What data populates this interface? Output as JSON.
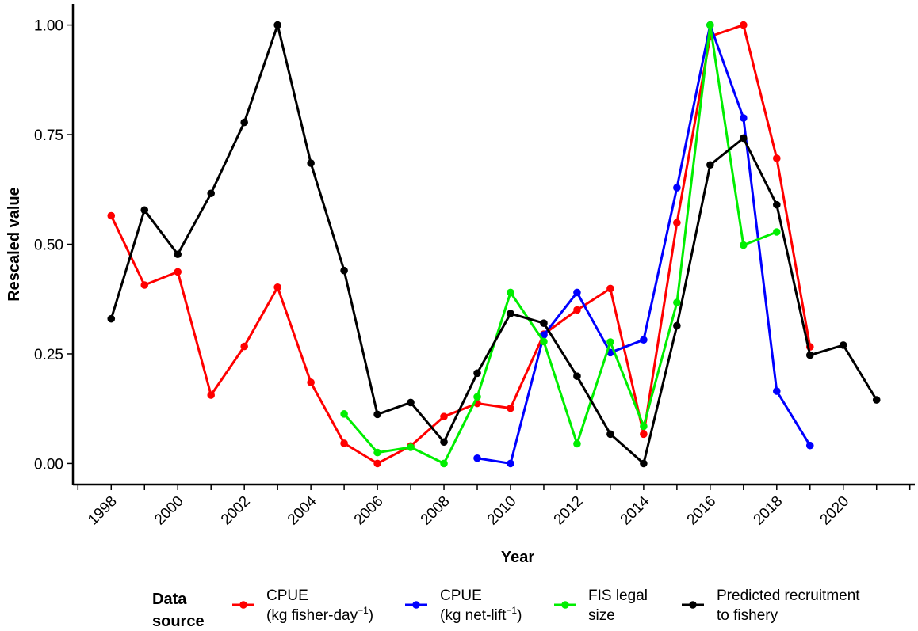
{
  "chart_data": {
    "type": "line",
    "title": "",
    "xlabel": "Year",
    "ylabel": "Rescaled value",
    "xlim": [
      1996.85,
      2022.15
    ],
    "ylim": [
      -0.048,
      1.048
    ],
    "x_ticks": [
      1998,
      2000,
      2002,
      2004,
      2006,
      2008,
      2010,
      2012,
      2014,
      2016,
      2018,
      2020
    ],
    "x_tick_labels": [
      "1998",
      "2000",
      "2002",
      "2004",
      "2006",
      "2008",
      "2010",
      "2012",
      "2014",
      "2016",
      "2018",
      "2020"
    ],
    "y_ticks": [
      0,
      0.25,
      0.5,
      0.75,
      1.0
    ],
    "y_tick_labels": [
      "0.00",
      "0.25",
      "0.50",
      "0.75",
      "1.00"
    ],
    "grid": false,
    "legend": {
      "title_lines": [
        "Data",
        "source"
      ],
      "placement": "bottom"
    },
    "series": [
      {
        "name_lines": [
          "CPUE",
          "(kg fisher-day",
          "−1",
          ")"
        ],
        "color": "#ff0000",
        "points": [
          [
            1998,
            0.565
          ],
          [
            1999,
            0.407
          ],
          [
            2000,
            0.437
          ],
          [
            2001,
            0.156
          ],
          [
            2002,
            0.267
          ],
          [
            2003,
            0.402
          ],
          [
            2004,
            0.185
          ],
          [
            2005,
            0.046
          ],
          [
            2006,
            0.0
          ],
          [
            2007,
            0.04
          ],
          [
            2008,
            0.107
          ],
          [
            2009,
            0.137
          ],
          [
            2010,
            0.126
          ],
          [
            2011,
            0.295
          ],
          [
            2012,
            0.35
          ],
          [
            2013,
            0.399
          ],
          [
            2014,
            0.067
          ],
          [
            2015,
            0.549
          ],
          [
            2016,
            0.974
          ],
          [
            2017,
            1.0
          ],
          [
            2018,
            0.696
          ],
          [
            2019,
            0.266
          ]
        ]
      },
      {
        "name_lines": [
          "CPUE",
          "(kg net-lift",
          "−1",
          ")"
        ],
        "color": "#0000ff",
        "points": [
          [
            2009,
            0.012
          ],
          [
            2010,
            0.0
          ],
          [
            2011,
            0.293
          ],
          [
            2012,
            0.39
          ],
          [
            2013,
            0.253
          ],
          [
            2014,
            0.282
          ],
          [
            2015,
            0.629
          ],
          [
            2016,
            1.0
          ],
          [
            2017,
            0.788
          ],
          [
            2018,
            0.165
          ],
          [
            2019,
            0.041
          ]
        ]
      },
      {
        "name_lines": [
          "FIS legal",
          "size"
        ],
        "color": "#00ee00",
        "points": [
          [
            2005,
            0.113
          ],
          [
            2006,
            0.025
          ],
          [
            2007,
            0.037
          ],
          [
            2008,
            0.0
          ],
          [
            2009,
            0.152
          ],
          [
            2010,
            0.39
          ],
          [
            2011,
            0.278
          ],
          [
            2012,
            0.045
          ],
          [
            2013,
            0.277
          ],
          [
            2014,
            0.085
          ],
          [
            2015,
            0.367
          ],
          [
            2016,
            1.0
          ],
          [
            2017,
            0.498
          ],
          [
            2018,
            0.528
          ]
        ]
      },
      {
        "name_lines": [
          "Predicted recruitment",
          "to fishery"
        ],
        "color": "#000000",
        "points": [
          [
            1998,
            0.33
          ],
          [
            1999,
            0.578
          ],
          [
            2000,
            0.477
          ],
          [
            2001,
            0.616
          ],
          [
            2002,
            0.778
          ],
          [
            2003,
            1.0
          ],
          [
            2004,
            0.685
          ],
          [
            2005,
            0.44
          ],
          [
            2006,
            0.112
          ],
          [
            2007,
            0.139
          ],
          [
            2008,
            0.049
          ],
          [
            2009,
            0.206
          ],
          [
            2010,
            0.342
          ],
          [
            2011,
            0.32
          ],
          [
            2012,
            0.199
          ],
          [
            2013,
            0.067
          ],
          [
            2014,
            0.0
          ],
          [
            2015,
            0.314
          ],
          [
            2016,
            0.681
          ],
          [
            2017,
            0.742
          ],
          [
            2018,
            0.59
          ],
          [
            2019,
            0.247
          ],
          [
            2020,
            0.27
          ],
          [
            2021,
            0.145
          ]
        ]
      }
    ]
  }
}
